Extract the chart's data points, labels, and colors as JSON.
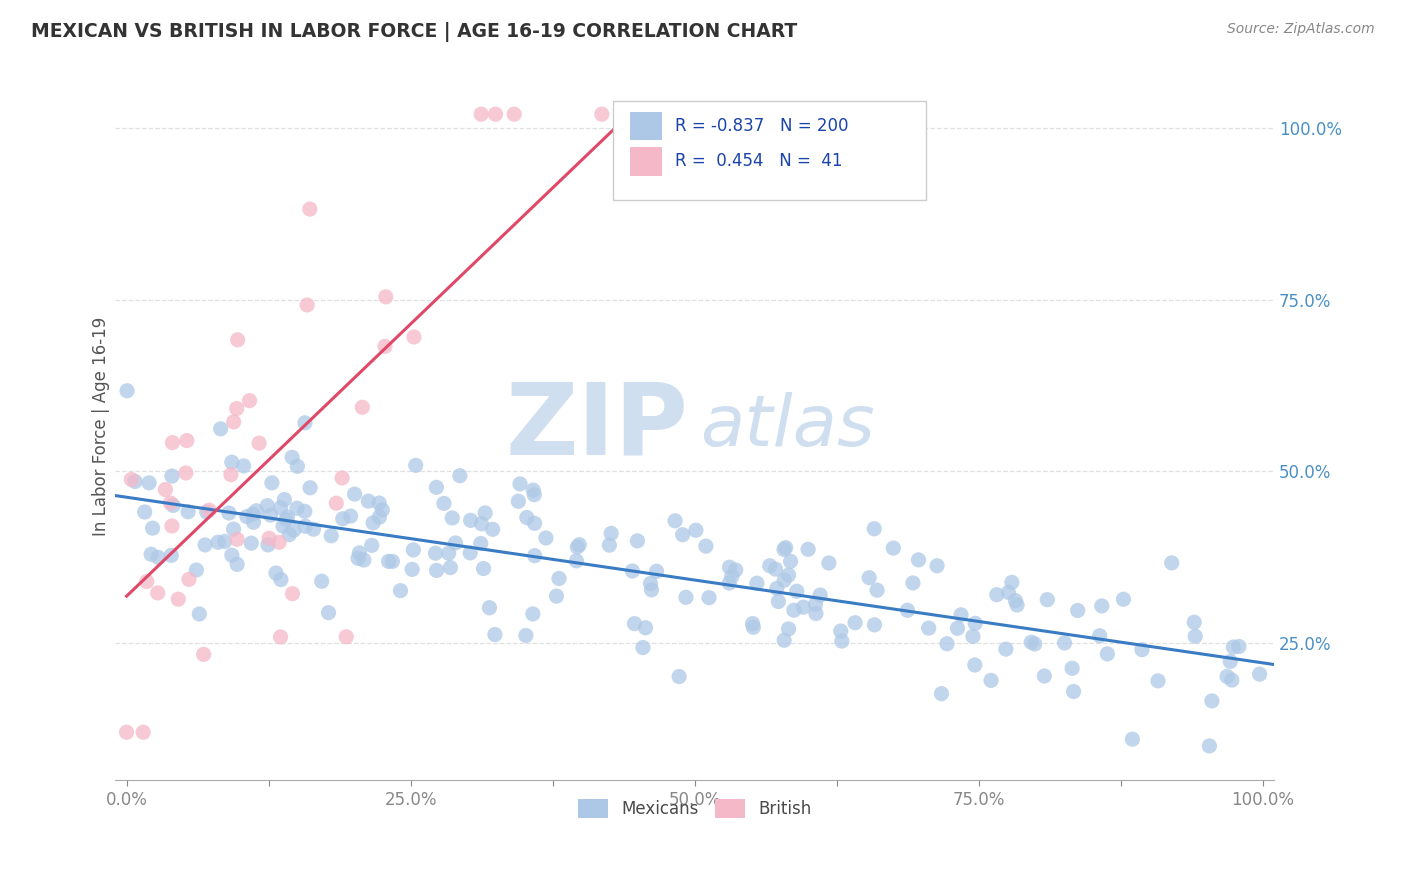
{
  "title": "MEXICAN VS BRITISH IN LABOR FORCE | AGE 16-19 CORRELATION CHART",
  "source": "Source: ZipAtlas.com",
  "ylabel": "In Labor Force | Age 16-19",
  "xlim": [
    -0.01,
    1.01
  ],
  "ylim": [
    0.05,
    1.08
  ],
  "xticks": [
    0.0,
    0.125,
    0.25,
    0.375,
    0.5,
    0.625,
    0.75,
    0.875,
    1.0
  ],
  "xtick_labels_main": [
    "0.0%",
    "",
    "25.0%",
    "",
    "50.0%",
    "",
    "75.0%",
    "",
    "100.0%"
  ],
  "yticks": [
    0.25,
    0.5,
    0.75,
    1.0
  ],
  "ytick_labels": [
    "25.0%",
    "50.0%",
    "75.0%",
    "100.0%"
  ],
  "blue_color": "#adc8e6",
  "pink_color": "#f5b8c8",
  "blue_line_color": "#3a7cc4",
  "pink_line_color": "#e04868",
  "legend_blue_color": "#adc8e6",
  "legend_pink_color": "#f5b8c8",
  "ytick_color": "#4a90c4",
  "r_blue": -0.837,
  "n_blue": 200,
  "r_pink": 0.454,
  "n_pink": 41,
  "watermark_zip": "ZIP",
  "watermark_atlas": "atlas",
  "watermark_color": "#d0dff0",
  "grid_color": "#e0e0e0",
  "title_color": "#333333",
  "source_color": "#888888",
  "tick_color": "#888888",
  "legend_label_color": "#4a4a4a"
}
